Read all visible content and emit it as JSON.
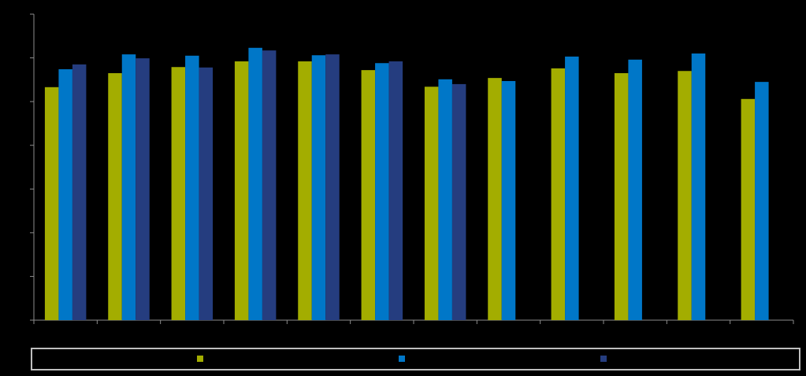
{
  "chart_data": {
    "type": "bar",
    "categories": [
      null,
      null,
      null,
      null,
      null,
      null,
      null,
      null,
      null,
      null,
      null,
      null
    ],
    "series": [
      {
        "color": "#a3ad00",
        "values": [
          5.33,
          5.65,
          5.79,
          5.92,
          5.92,
          5.72,
          5.34,
          5.54,
          5.76,
          5.65,
          5.7,
          5.06
        ]
      },
      {
        "color": "#0077c8",
        "values": [
          5.74,
          6.08,
          6.05,
          6.23,
          6.06,
          5.88,
          5.51,
          5.47,
          6.03,
          5.96,
          6.1,
          5.45
        ]
      },
      {
        "color": "#253d7f",
        "values": [
          5.85,
          5.99,
          5.78,
          6.17,
          6.08,
          5.92,
          5.4,
          null,
          null,
          null,
          null,
          null
        ]
      }
    ],
    "ylim": [
      0,
      7
    ],
    "yticks": [
      0,
      1,
      2,
      3,
      4,
      5,
      6,
      7
    ],
    "grid": false
  }
}
